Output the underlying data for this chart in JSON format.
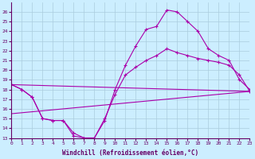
{
  "xlabel": "Windchill (Refroidissement éolien,°C)",
  "bg_color": "#cceeff",
  "grid_color": "#aaccdd",
  "line_color": "#aa00aa",
  "xlim": [
    0,
    23
  ],
  "ylim": [
    13,
    27
  ],
  "xticks": [
    0,
    1,
    2,
    3,
    4,
    5,
    6,
    7,
    8,
    9,
    10,
    11,
    12,
    13,
    14,
    15,
    16,
    17,
    18,
    19,
    20,
    21,
    22,
    23
  ],
  "yticks": [
    13,
    14,
    15,
    16,
    17,
    18,
    19,
    20,
    21,
    22,
    23,
    24,
    25,
    26
  ],
  "line1_x": [
    0,
    1,
    2,
    3,
    4,
    5,
    6,
    7,
    8,
    9,
    10,
    11,
    12,
    13,
    14,
    15,
    16,
    17,
    18,
    19,
    20,
    21,
    22,
    23
  ],
  "line1_y": [
    18.5,
    18.0,
    17.2,
    15.0,
    14.8,
    14.8,
    13.2,
    13.0,
    13.0,
    14.8,
    18.0,
    20.5,
    22.5,
    24.2,
    24.5,
    26.2,
    26.0,
    25.0,
    24.0,
    22.2,
    21.5,
    21.0,
    19.0,
    18.0
  ],
  "line2_x": [
    0,
    1,
    2,
    3,
    4,
    5,
    6,
    7,
    8,
    9,
    10,
    11,
    12,
    13,
    14,
    15,
    16,
    17,
    18,
    19,
    20,
    21,
    22,
    23
  ],
  "line2_y": [
    18.5,
    18.0,
    17.2,
    15.0,
    14.8,
    14.8,
    13.5,
    13.0,
    13.0,
    15.0,
    17.5,
    19.5,
    20.3,
    21.0,
    21.5,
    22.2,
    21.8,
    21.5,
    21.2,
    21.0,
    20.8,
    20.5,
    19.5,
    17.8
  ],
  "line3_x": [
    0,
    23
  ],
  "line3_y": [
    18.5,
    17.8
  ],
  "line4_x": [
    0,
    23
  ],
  "line4_y": [
    15.5,
    17.8
  ]
}
